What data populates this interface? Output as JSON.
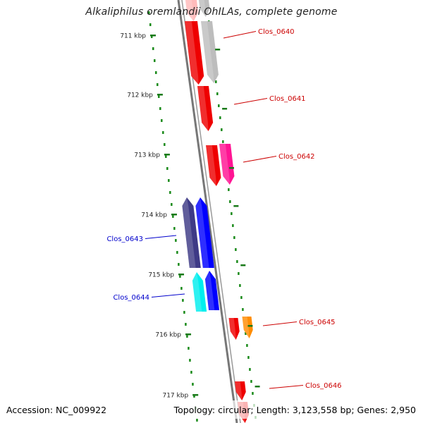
{
  "title": "Alkaliphilus oremlandii OhILAs, complete genome",
  "accession_label": "Accession: NC_009922",
  "summary_label": "Topology: circular; Length: 3,123,558 bp; Genes: 2,950",
  "colors": {
    "backbone": "#777777",
    "ruler_dots": "#1a8a1a",
    "forward_label": "#cc0000",
    "reverse_label": "#0000cc",
    "ticks": "#1a7a1a"
  },
  "ruler_labels": [
    "711 kbp",
    "712 kbp",
    "713 kbp",
    "714 kbp",
    "715 kbp",
    "716 kbp",
    "717 kbp"
  ],
  "genes": [
    {
      "name": "Clos_0640",
      "strand": "forward",
      "label": "Clos_0640"
    },
    {
      "name": "Clos_0641",
      "strand": "forward",
      "label": "Clos_0641"
    },
    {
      "name": "Clos_0642",
      "strand": "forward",
      "label": "Clos_0642"
    },
    {
      "name": "Clos_0643",
      "strand": "reverse",
      "label": "Clos_0643"
    },
    {
      "name": "Clos_0644",
      "strand": "reverse",
      "label": "Clos_0644"
    },
    {
      "name": "Clos_0645",
      "strand": "forward",
      "label": "Clos_0645"
    },
    {
      "name": "Clos_0646",
      "strand": "forward",
      "label": "Clos_0646"
    }
  ],
  "feature_colors": {
    "red": "#ee0000",
    "pink": "#ffbbbb",
    "gray": "#bdbdbd",
    "magenta": "#ff1493",
    "navy": "#3e3a86",
    "blue": "#0000ff",
    "cyan": "#00eeee",
    "orange": "#ff8c00"
  }
}
